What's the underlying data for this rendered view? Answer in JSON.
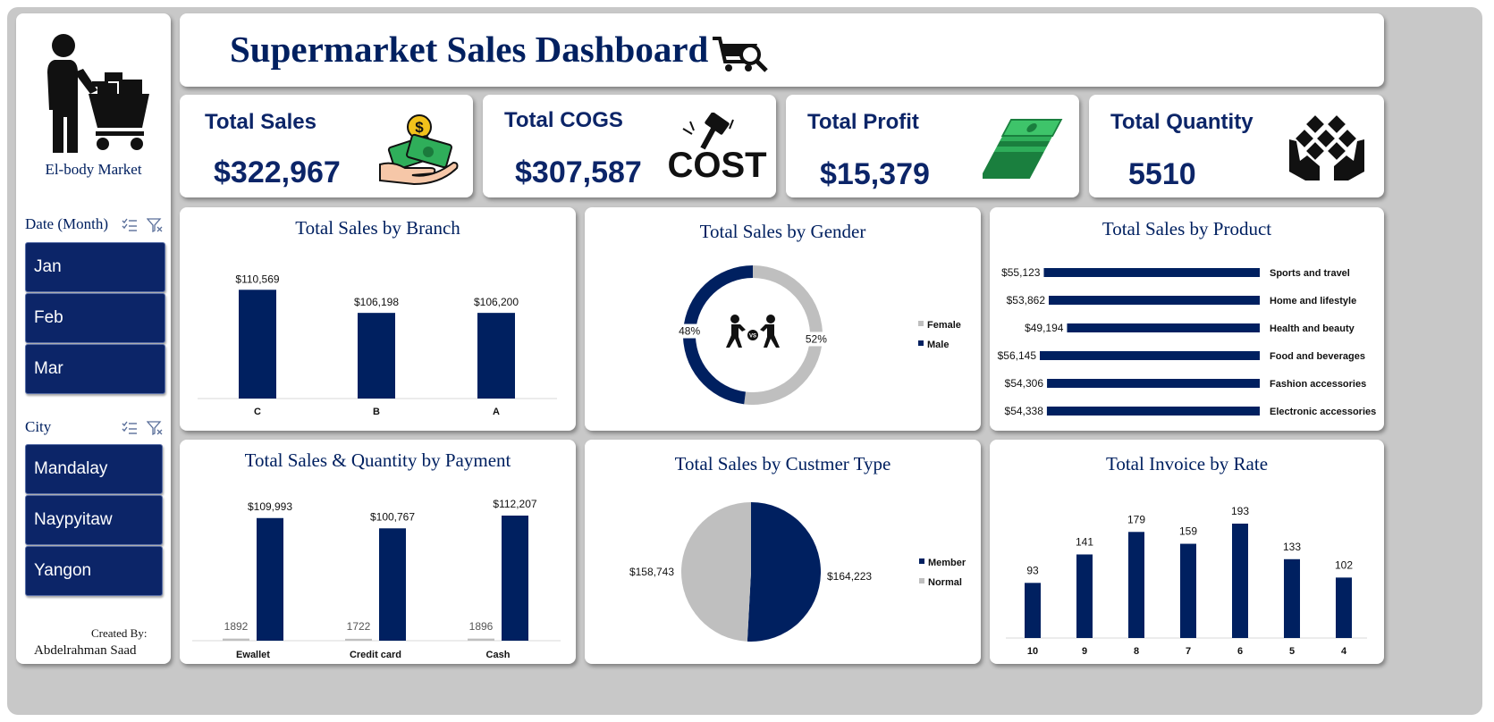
{
  "dashboard_title": "Supermarket Sales Dashboard",
  "sidebar": {
    "brand": "El-body Market",
    "date_slicer": {
      "title": "Date (Month)",
      "items": [
        "Jan",
        "Feb",
        "Mar"
      ]
    },
    "city_slicer": {
      "title": "City",
      "items": [
        "Mandalay",
        "Naypyitaw",
        "Yangon"
      ]
    },
    "created_by_label": "Created By:",
    "author": "Abdelrahman Saad"
  },
  "kpis": {
    "total_sales": {
      "label": "Total Sales",
      "value": "$322,967"
    },
    "total_cogs": {
      "label": "Total COGS",
      "value": "$307,587"
    },
    "total_profit": {
      "label": "Total Profit",
      "value": "$15,379"
    },
    "total_quantity": {
      "label": "Total Quantity",
      "value": "5510"
    }
  },
  "icons": {
    "shopper": "person-with-cart-icon",
    "cart": "cart-search-icon",
    "sales": "money-hand-icon",
    "cogs": "cost-hammer-icon",
    "profit": "cash-stack-icon",
    "quantity": "boxes-hands-icon",
    "gender": "versus-fighters-icon",
    "slicer_multiselect": "multiselect-icon",
    "slicer_clear": "clear-filter-icon"
  },
  "colors": {
    "navy": "#002060",
    "grey": "#bfbfbf",
    "background": "#c8c8c8"
  },
  "chart_data": [
    {
      "id": "branch",
      "type": "bar",
      "title": "Total Sales by Branch",
      "categories": [
        "C",
        "B",
        "A"
      ],
      "values": [
        110569,
        106198,
        106200
      ],
      "labels": [
        "$110,569",
        "$106,198",
        "$106,200"
      ],
      "ylim": [
        90000,
        114000
      ]
    },
    {
      "id": "gender",
      "type": "pie",
      "title": "Total Sales by Gender",
      "categories": [
        "Female",
        "Male"
      ],
      "values": [
        52,
        48
      ],
      "labels": [
        "52%",
        "48%"
      ],
      "legend": "right"
    },
    {
      "id": "product",
      "type": "bar",
      "title": "Total Sales by Product",
      "categories": [
        "Sports and travel",
        "Home and lifestyle",
        "Health and beauty",
        "Food and beverages",
        "Fashion accessories",
        "Electronic accessories"
      ],
      "values": [
        55123,
        53862,
        49194,
        56145,
        54306,
        54338
      ],
      "labels": [
        "$55,123",
        "$53,862",
        "$49,194",
        "$56,145",
        "$54,306",
        "$54,338"
      ]
    },
    {
      "id": "payment",
      "type": "bar",
      "title": "Total Sales & Quantity by Payment",
      "categories": [
        "Ewallet",
        "Credit card",
        "Cash"
      ],
      "series": [
        {
          "values": [
            1892,
            1722,
            1896
          ],
          "labels": [
            "1892",
            "1722",
            "1896"
          ]
        },
        {
          "values": [
            109993,
            100767,
            112207
          ],
          "labels": [
            "$109,993",
            "$100,767",
            "$112,207"
          ]
        }
      ]
    },
    {
      "id": "customer",
      "type": "pie",
      "title": "Total Sales by Custmer Type",
      "categories": [
        "Member",
        "Normal"
      ],
      "values": [
        164223,
        158743
      ],
      "labels": [
        "$164,223",
        "$158,743"
      ],
      "legend": "right"
    },
    {
      "id": "rate",
      "type": "bar",
      "title": "Total Invoice by Rate",
      "categories": [
        "10",
        "9",
        "8",
        "7",
        "6",
        "5",
        "4"
      ],
      "values": [
        93,
        141,
        179,
        159,
        193,
        133,
        102
      ],
      "labels": [
        "93",
        "141",
        "179",
        "159",
        "193",
        "133",
        "102"
      ]
    }
  ]
}
